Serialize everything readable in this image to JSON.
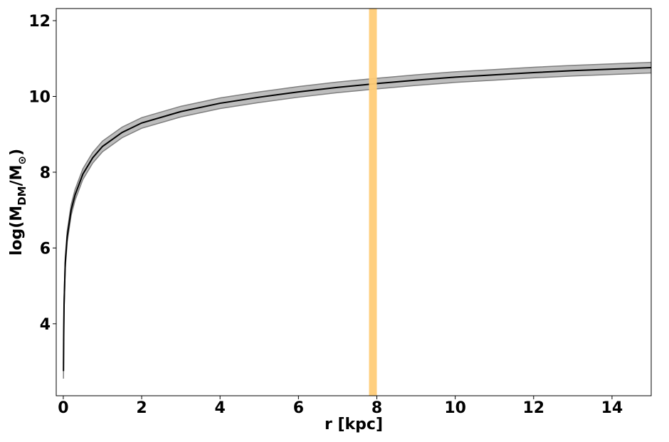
{
  "chart_data": {
    "type": "line",
    "xlabel": "r [kpc]",
    "ylabel": [
      "log(M",
      "DM",
      "/M",
      "⊙",
      ")"
    ],
    "x": [
      0.005,
      0.01,
      0.02,
      0.05,
      0.1,
      0.2,
      0.3,
      0.5,
      0.75,
      1,
      1.5,
      2,
      3,
      4,
      5,
      6,
      7,
      8,
      9,
      10,
      11,
      12,
      13,
      14,
      15
    ],
    "values": [
      2.75,
      3.6,
      4.5,
      5.6,
      6.3,
      7.0,
      7.4,
      7.95,
      8.38,
      8.68,
      9.05,
      9.3,
      9.6,
      9.82,
      9.98,
      10.12,
      10.24,
      10.34,
      10.43,
      10.51,
      10.57,
      10.63,
      10.68,
      10.72,
      10.76
    ],
    "lower": [
      2.55,
      3.45,
      4.35,
      5.45,
      6.16,
      6.86,
      7.26,
      7.81,
      8.24,
      8.54,
      8.91,
      9.16,
      9.46,
      9.68,
      9.84,
      9.98,
      10.1,
      10.2,
      10.29,
      10.37,
      10.43,
      10.49,
      10.54,
      10.58,
      10.62
    ],
    "upper": [
      2.95,
      3.75,
      4.65,
      5.75,
      6.44,
      7.14,
      7.54,
      8.09,
      8.52,
      8.82,
      9.19,
      9.44,
      9.74,
      9.96,
      10.12,
      10.26,
      10.38,
      10.48,
      10.57,
      10.65,
      10.71,
      10.77,
      10.82,
      10.86,
      10.9
    ],
    "color": "#000000",
    "band_color": "#bdbdbd",
    "band_edge_color": "#7f7f7f",
    "vspan": [
      7.8,
      8.0
    ],
    "vspan_color": "#ffcc77",
    "xlim": [
      -0.18,
      15
    ],
    "ylim": [
      2.1,
      12.32
    ],
    "xticks": [
      0,
      2,
      4,
      6,
      8,
      10,
      12,
      14
    ],
    "yticks": [
      4,
      6,
      8,
      10,
      12
    ]
  }
}
